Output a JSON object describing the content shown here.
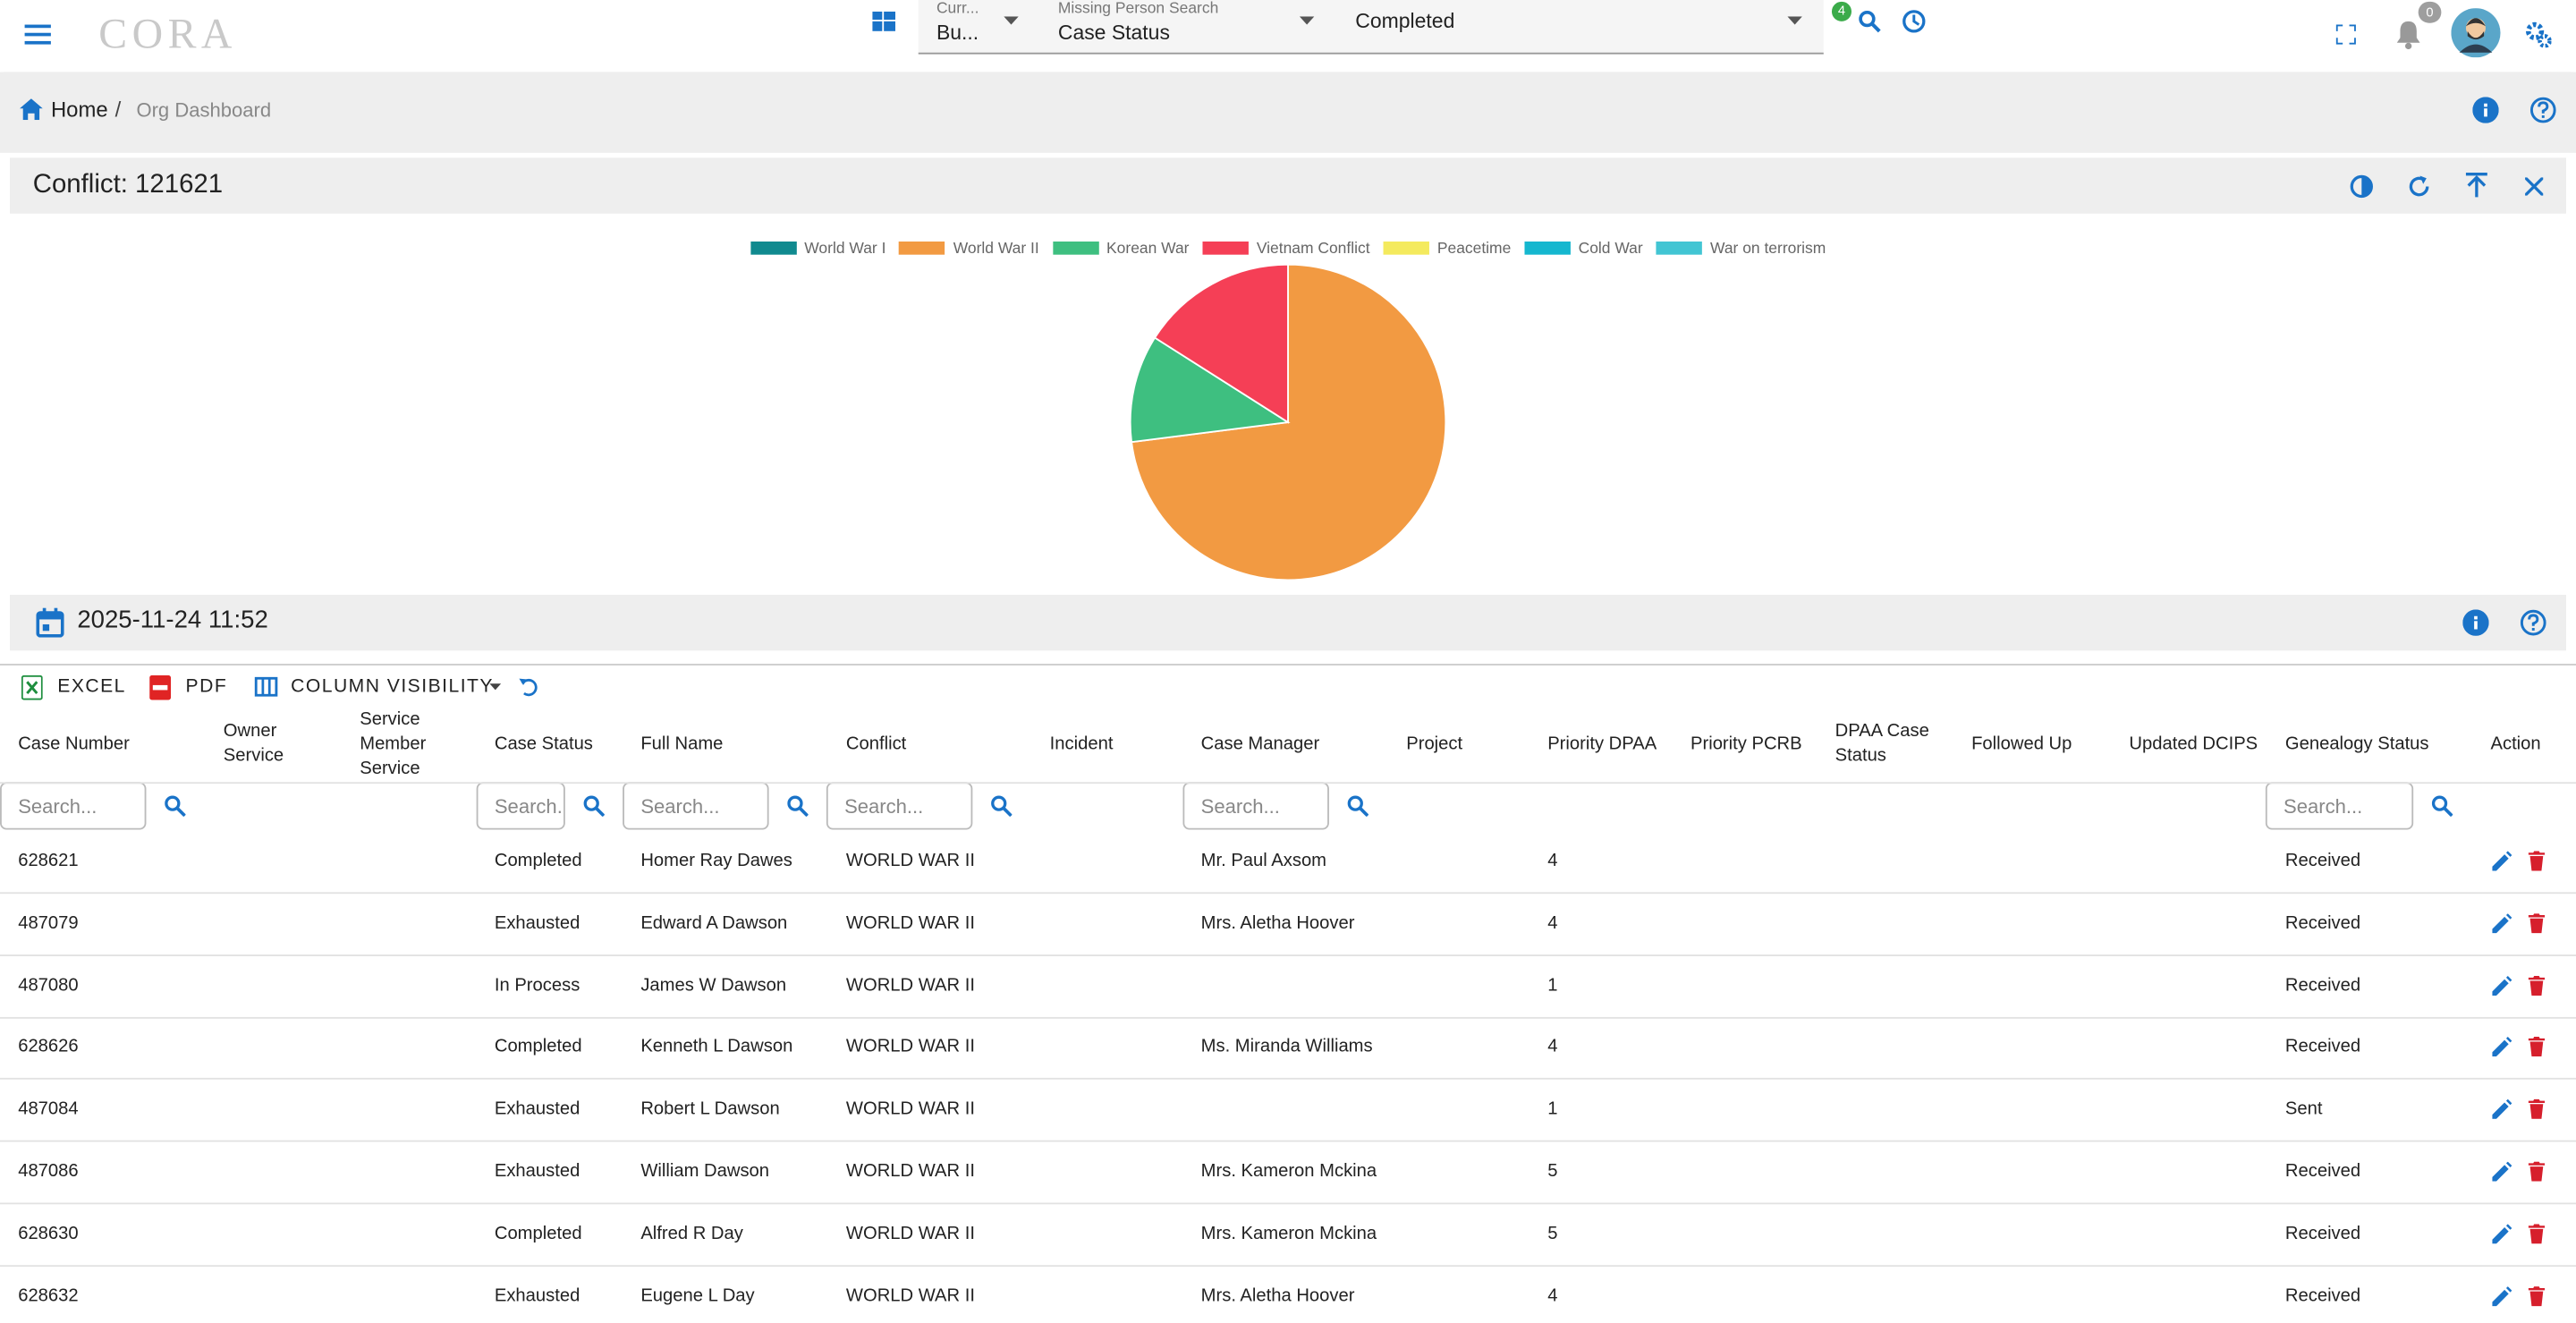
{
  "header": {
    "logo": "CORA",
    "field1_label": "Curr...",
    "field1_value": "Bu...",
    "field2_label": "Missing Person Search",
    "field2_value": "Case Status",
    "field3_value": "Completed",
    "filter_badge": "4",
    "notification_badge": "0"
  },
  "breadcrumb": {
    "home": "Home",
    "separator": "/",
    "current": "Org Dashboard"
  },
  "chart_data": {
    "type": "pie",
    "title": "Conflict: 121621",
    "categories": [
      "World War I",
      "World War II",
      "Korean War",
      "Vietnam Conflict",
      "Peacetime",
      "Cold War",
      "War on terrorism"
    ],
    "values": [
      0,
      73,
      11,
      16,
      0,
      0,
      0
    ],
    "colors": [
      "#108a8f",
      "#f29a42",
      "#3ebf80",
      "#f53f56",
      "#f4ea5e",
      "#15b7cf",
      "#42c5d3"
    ],
    "legend": "top"
  },
  "date_panel": {
    "text": "2025-11-24 11:52"
  },
  "toolbar": {
    "excel": "EXCEL",
    "pdf": "PDF",
    "columns": "COLUMN VISIBILITY"
  },
  "table": {
    "columns": [
      "Case Number",
      "Owner Service",
      "Service Member Service",
      "Case Status",
      "Full Name",
      "Conflict",
      "Incident",
      "Case Manager",
      "Project",
      "Priority DPAA",
      "Priority PCRB",
      "DPAA Case Status",
      "Followed Up",
      "Updated DCIPS",
      "Genealogy Status",
      "Action"
    ],
    "filters": [
      "Search...",
      null,
      null,
      "Search...",
      "Search...",
      "Search...",
      null,
      "Search...",
      null,
      null,
      null,
      null,
      null,
      null,
      "Search...",
      null
    ],
    "rows": [
      [
        "628621",
        null,
        null,
        "Completed",
        "Homer Ray Dawes",
        "WORLD WAR II",
        null,
        "Mr. Paul Axsom",
        null,
        "4",
        null,
        null,
        null,
        null,
        "Received"
      ],
      [
        "487079",
        null,
        null,
        "Exhausted",
        "Edward A Dawson",
        "WORLD WAR II",
        null,
        "Mrs. Aletha Hoover",
        null,
        "4",
        null,
        null,
        null,
        null,
        "Received"
      ],
      [
        "487080",
        null,
        null,
        "In Process",
        "James W Dawson",
        "WORLD WAR II",
        null,
        null,
        null,
        "1",
        null,
        null,
        null,
        null,
        "Received"
      ],
      [
        "628626",
        null,
        null,
        "Completed",
        "Kenneth L Dawson",
        "WORLD WAR II",
        null,
        "Ms. Miranda Williams",
        null,
        "4",
        null,
        null,
        null,
        null,
        "Received"
      ],
      [
        "487084",
        null,
        null,
        "Exhausted",
        "Robert L Dawson",
        "WORLD WAR II",
        null,
        null,
        null,
        "1",
        null,
        null,
        null,
        null,
        "Sent"
      ],
      [
        "487086",
        null,
        null,
        "Exhausted",
        "William Dawson",
        "WORLD WAR II",
        null,
        "Mrs. Kameron Mckina",
        null,
        "5",
        null,
        null,
        null,
        null,
        "Received"
      ],
      [
        "628630",
        null,
        null,
        "Completed",
        "Alfred R Day",
        "WORLD WAR II",
        null,
        "Mrs. Kameron Mckina",
        null,
        "5",
        null,
        null,
        null,
        null,
        "Received"
      ],
      [
        "628632",
        null,
        null,
        "Exhausted",
        "Eugene L Day",
        "WORLD WAR II",
        null,
        "Mrs. Aletha Hoover",
        null,
        "4",
        null,
        null,
        null,
        null,
        "Received"
      ]
    ]
  }
}
